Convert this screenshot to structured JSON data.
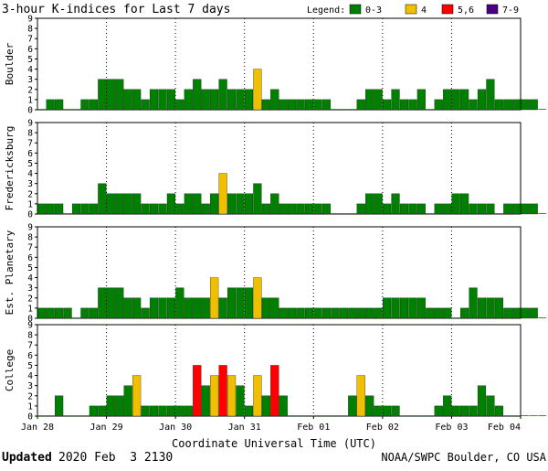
{
  "title": "3-hour K-indices for Last 7 days",
  "legend": {
    "label": "Legend:",
    "entries": [
      {
        "label": "0-3",
        "color": "#008000"
      },
      {
        "label": "4",
        "color": "#f0c000"
      },
      {
        "label": "5,6",
        "color": "#ff0000"
      },
      {
        "label": "7-9",
        "color": "#4b0082"
      }
    ]
  },
  "xlabel": "Coordinate Universal Time (UTC)",
  "footer": {
    "updated_label": "Updated",
    "updated_value": "2020 Feb  3 2130",
    "credit": "NOAA/SWPC Boulder, CO USA"
  },
  "chart_data": [
    {
      "type": "bar",
      "station": "Boulder",
      "ylim": [
        0,
        9
      ],
      "yticks": [
        "0",
        "1",
        "2",
        "3",
        "4",
        "5",
        "6",
        "7",
        "8",
        "9"
      ],
      "xticks": [
        "Jan 28",
        "Jan 29",
        "Jan 30",
        "Jan 31",
        "Feb 01",
        "Feb 02",
        "Feb 03",
        "Feb 04"
      ],
      "bins_per_day": 8,
      "values": [
        0,
        1,
        1,
        0,
        0,
        1,
        1,
        3,
        3,
        3,
        2,
        2,
        1,
        2,
        2,
        2,
        1,
        2,
        3,
        2,
        2,
        3,
        2,
        2,
        2,
        4,
        1,
        2,
        1,
        1,
        1,
        1,
        1,
        1,
        0,
        0,
        0,
        1,
        2,
        2,
        1,
        2,
        1,
        1,
        2,
        0,
        1,
        2,
        2,
        2,
        1,
        2,
        3,
        1,
        1,
        1,
        1,
        1,
        0
      ]
    },
    {
      "type": "bar",
      "station": "Fredericksburg",
      "ylim": [
        0,
        9
      ],
      "yticks": [
        "0",
        "1",
        "2",
        "3",
        "4",
        "5",
        "6",
        "7",
        "8",
        "9"
      ],
      "xticks": [
        "Jan 28",
        "Jan 29",
        "Jan 30",
        "Jan 31",
        "Feb 01",
        "Feb 02",
        "Feb 03",
        "Feb 04"
      ],
      "bins_per_day": 8,
      "values": [
        1,
        1,
        1,
        0,
        1,
        1,
        1,
        3,
        2,
        2,
        2,
        2,
        1,
        1,
        1,
        2,
        1,
        2,
        2,
        1,
        2,
        4,
        2,
        2,
        2,
        3,
        1,
        2,
        1,
        1,
        1,
        1,
        1,
        1,
        0,
        0,
        0,
        1,
        2,
        2,
        1,
        2,
        1,
        1,
        1,
        0,
        1,
        1,
        2,
        2,
        1,
        1,
        1,
        0,
        1,
        1,
        1,
        1,
        0
      ]
    },
    {
      "type": "bar",
      "station": "Est. Planetary",
      "ylim": [
        0,
        9
      ],
      "yticks": [
        "0",
        "1",
        "2",
        "3",
        "4",
        "5",
        "6",
        "7",
        "8",
        "9"
      ],
      "xticks": [
        "Jan 28",
        "Jan 29",
        "Jan 30",
        "Jan 31",
        "Feb 01",
        "Feb 02",
        "Feb 03",
        "Feb 04"
      ],
      "bins_per_day": 8,
      "values": [
        1,
        1,
        1,
        1,
        0,
        1,
        1,
        3,
        3,
        3,
        2,
        2,
        1,
        2,
        2,
        2,
        3,
        2,
        2,
        2,
        4,
        2,
        3,
        3,
        3,
        4,
        2,
        2,
        1,
        1,
        1,
        1,
        1,
        1,
        1,
        1,
        1,
        1,
        1,
        1,
        2,
        2,
        2,
        2,
        2,
        1,
        1,
        1,
        0,
        1,
        3,
        2,
        2,
        2,
        1,
        1,
        1,
        1,
        0
      ]
    },
    {
      "type": "bar",
      "station": "College",
      "ylim": [
        0,
        9
      ],
      "yticks": [
        "0",
        "1",
        "2",
        "3",
        "4",
        "5",
        "6",
        "7",
        "8",
        "9"
      ],
      "xticks": [
        "Jan 28",
        "Jan 29",
        "Jan 30",
        "Jan 31",
        "Feb 01",
        "Feb 02",
        "Feb 03",
        "Feb 04"
      ],
      "bins_per_day": 8,
      "values": [
        0,
        0,
        2,
        0,
        0,
        0,
        1,
        1,
        2,
        2,
        3,
        4,
        1,
        1,
        1,
        1,
        1,
        1,
        5,
        3,
        4,
        5,
        4,
        3,
        1,
        4,
        2,
        5,
        2,
        0,
        0,
        0,
        0,
        0,
        0,
        0,
        2,
        4,
        2,
        1,
        1,
        1,
        0,
        0,
        0,
        0,
        1,
        2,
        1,
        1,
        1,
        3,
        2,
        1,
        0,
        0,
        0,
        0,
        0
      ]
    }
  ]
}
